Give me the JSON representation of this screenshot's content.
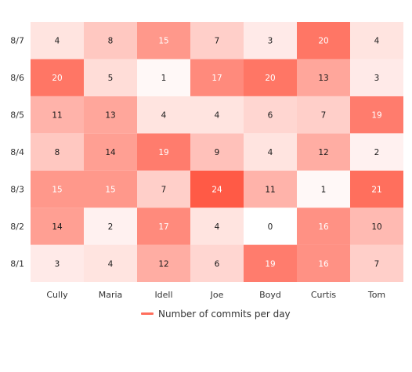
{
  "chart_data": {
    "type": "heatmap",
    "title": "",
    "x_categories": [
      "Cully",
      "Maria",
      "Idell",
      "Joe",
      "Boyd",
      "Curtis",
      "Tom"
    ],
    "y_categories": [
      "8/1",
      "8/2",
      "8/3",
      "8/4",
      "8/5",
      "8/6",
      "8/7"
    ],
    "values": [
      [
        3,
        4,
        12,
        6,
        19,
        16,
        7
      ],
      [
        14,
        2,
        17,
        4,
        0,
        16,
        10
      ],
      [
        15,
        15,
        7,
        24,
        11,
        1,
        21
      ],
      [
        8,
        14,
        19,
        9,
        4,
        12,
        2
      ],
      [
        11,
        13,
        4,
        4,
        6,
        7,
        19
      ],
      [
        20,
        5,
        1,
        17,
        20,
        13,
        3
      ],
      [
        4,
        8,
        15,
        7,
        3,
        20,
        4
      ]
    ],
    "value_range": [
      0,
      24
    ],
    "color_low": "#ffffff",
    "color_high": "#ff5a46",
    "legend": {
      "label": "Number of commits per day",
      "color": "#ff6e5c",
      "position": "bottom"
    }
  }
}
